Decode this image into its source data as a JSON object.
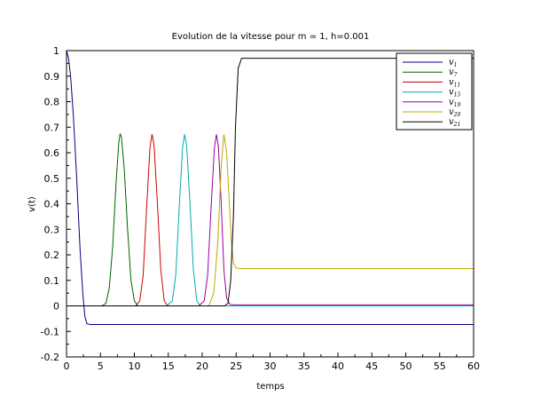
{
  "chart_data": {
    "type": "line",
    "title": "Evolution de la vitesse pour m = 1, h=0.001",
    "xlabel": "temps",
    "ylabel": "v(t)",
    "xlim": [
      0,
      60
    ],
    "ylim": [
      -0.2,
      1
    ],
    "xticks": [
      "0",
      "5",
      "10",
      "15",
      "20",
      "25",
      "30",
      "35",
      "40",
      "45",
      "50",
      "55",
      "60"
    ],
    "yticks": [
      "-0.2",
      "-0.1",
      "0",
      "0.1",
      "0.2",
      "0.3",
      "0.4",
      "0.5",
      "0.6",
      "0.7",
      "0.8",
      "0.9",
      "1"
    ],
    "grid": false,
    "legend_position": "top-right",
    "series": [
      {
        "name": "v",
        "sub": "1",
        "color": "#000080",
        "points": [
          [
            0,
            1
          ],
          [
            0.3,
            0.97
          ],
          [
            0.6,
            0.9
          ],
          [
            1,
            0.75
          ],
          [
            1.5,
            0.5
          ],
          [
            2,
            0.22
          ],
          [
            2.4,
            0.05
          ],
          [
            2.7,
            -0.04
          ],
          [
            3,
            -0.07
          ],
          [
            3.5,
            -0.073
          ],
          [
            5,
            -0.073
          ],
          [
            60,
            -0.073
          ]
        ]
      },
      {
        "name": "v",
        "sub": "7",
        "color": "#006400",
        "points": [
          [
            0,
            0
          ],
          [
            5.2,
            0
          ],
          [
            5.8,
            0.01
          ],
          [
            6.3,
            0.07
          ],
          [
            6.8,
            0.23
          ],
          [
            7.3,
            0.48
          ],
          [
            7.7,
            0.64
          ],
          [
            7.9,
            0.675
          ],
          [
            8.1,
            0.66
          ],
          [
            8.5,
            0.54
          ],
          [
            9,
            0.3
          ],
          [
            9.5,
            0.1
          ],
          [
            10,
            0.02
          ],
          [
            10.5,
            0
          ],
          [
            60,
            0
          ]
        ]
      },
      {
        "name": "v",
        "sub": "11",
        "color": "#cc0000",
        "points": [
          [
            0,
            0
          ],
          [
            9.4,
            0
          ],
          [
            10.2,
            0
          ],
          [
            10.8,
            0.02
          ],
          [
            11.3,
            0.12
          ],
          [
            11.8,
            0.38
          ],
          [
            12.3,
            0.62
          ],
          [
            12.6,
            0.672
          ],
          [
            12.9,
            0.63
          ],
          [
            13.4,
            0.4
          ],
          [
            13.9,
            0.14
          ],
          [
            14.4,
            0.02
          ],
          [
            14.9,
            0
          ],
          [
            60,
            0
          ]
        ]
      },
      {
        "name": "v",
        "sub": "15",
        "color": "#00aaaa",
        "points": [
          [
            0,
            0
          ],
          [
            14.8,
            0
          ],
          [
            15.6,
            0.02
          ],
          [
            16.1,
            0.12
          ],
          [
            16.6,
            0.38
          ],
          [
            17.1,
            0.62
          ],
          [
            17.4,
            0.672
          ],
          [
            17.7,
            0.63
          ],
          [
            18.2,
            0.4
          ],
          [
            18.7,
            0.14
          ],
          [
            19.2,
            0.02
          ],
          [
            19.7,
            0
          ],
          [
            60,
            0
          ]
        ]
      },
      {
        "name": "v",
        "sub": "19",
        "color": "#990099",
        "points": [
          [
            0,
            0
          ],
          [
            19.5,
            0
          ],
          [
            20.3,
            0.02
          ],
          [
            20.8,
            0.12
          ],
          [
            21.3,
            0.38
          ],
          [
            21.8,
            0.62
          ],
          [
            22.1,
            0.672
          ],
          [
            22.4,
            0.62
          ],
          [
            22.8,
            0.4
          ],
          [
            23.2,
            0.14
          ],
          [
            23.6,
            0.03
          ],
          [
            24.1,
            0.005
          ],
          [
            25,
            0.004
          ],
          [
            60,
            0.004
          ]
        ]
      },
      {
        "name": "v",
        "sub": "20",
        "color": "#bbaa00",
        "points": [
          [
            0,
            0
          ],
          [
            21,
            0
          ],
          [
            21.7,
            0.05
          ],
          [
            22.3,
            0.25
          ],
          [
            22.8,
            0.55
          ],
          [
            23.2,
            0.672
          ],
          [
            23.6,
            0.6
          ],
          [
            24,
            0.4
          ],
          [
            24.3,
            0.25
          ],
          [
            24.6,
            0.17
          ],
          [
            25,
            0.148
          ],
          [
            26,
            0.146
          ],
          [
            60,
            0.146
          ]
        ]
      },
      {
        "name": "v",
        "sub": "21",
        "color": "#000000",
        "points": [
          [
            0,
            0
          ],
          [
            23.3,
            0
          ],
          [
            23.8,
            0.01
          ],
          [
            24.2,
            0.1
          ],
          [
            24.6,
            0.35
          ],
          [
            24.9,
            0.7
          ],
          [
            25.3,
            0.93
          ],
          [
            25.8,
            0.97
          ],
          [
            60,
            0.97
          ]
        ]
      }
    ]
  }
}
